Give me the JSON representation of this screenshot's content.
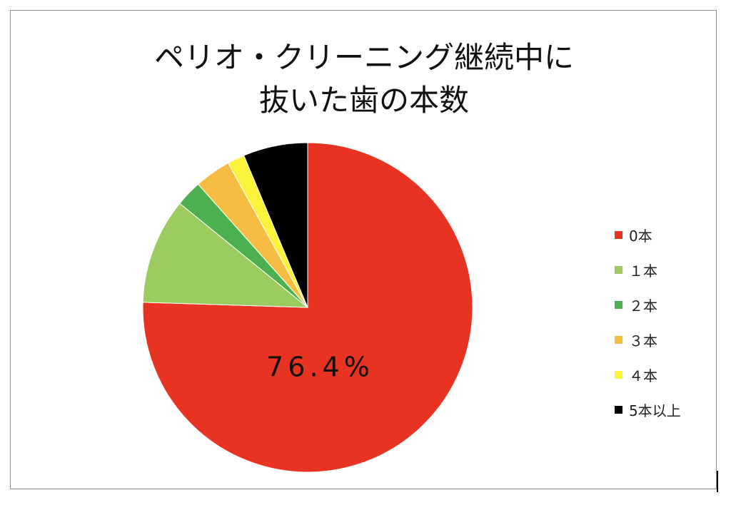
{
  "chart_data": {
    "type": "pie",
    "title": [
      "ペリオ・クリーニング継続中に",
      "抜いた歯の本数"
    ],
    "categories": [
      "0本",
      "１本",
      "２本",
      "３本",
      "４本",
      "5本以上"
    ],
    "values": [
      76.4,
      10.5,
      2.6,
      3.6,
      1.7,
      6.4
    ],
    "unit": "%",
    "colors": [
      "#e83222",
      "#9ccb5f",
      "#4caf50",
      "#f6bd42",
      "#fbf23c",
      "#000000"
    ],
    "data_labels": [
      "76.4%",
      "",
      "",
      "",
      "",
      ""
    ],
    "legend_position": "right",
    "start_angle": "12 o'clock",
    "direction": "clockwise"
  }
}
